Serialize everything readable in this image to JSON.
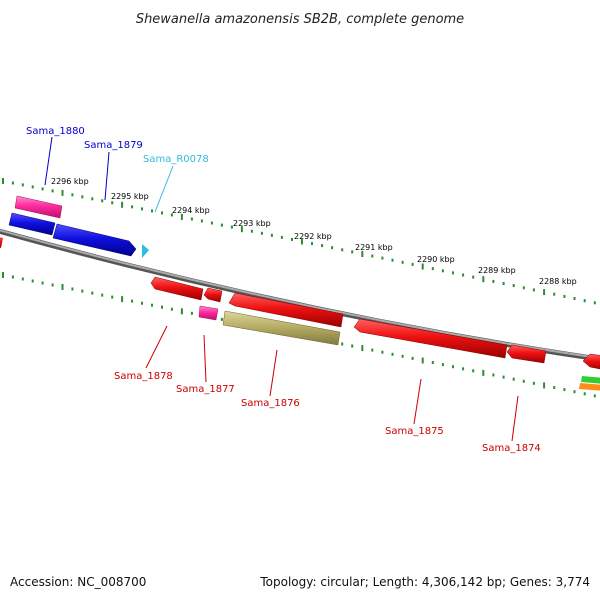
{
  "title": "Shewanella amazonensis SB2B, complete genome",
  "footer": {
    "accession": "Accession: NC_008700",
    "info": "Topology: circular; Length: 4,306,142 bp; Genes: 3,774"
  },
  "colors": {
    "forward_blue": "#1010e0",
    "forward_pink": "#ff2aa0",
    "rrna_cyan": "#33bbdd",
    "reverse_red": "#ee1111",
    "reverse_olive": "#b7ae66",
    "backbone": "#888888",
    "tick_green": "#2e8b2e",
    "label_blue": "#0000cc",
    "label_red": "#cc0000",
    "label_cyan": "#33bbdd"
  },
  "scale_labels": [
    "2296 kbp",
    "2295 kbp",
    "2294 kbp",
    "2293 kbp",
    "2292 kbp",
    "2291 kbp",
    "2290 kbp",
    "2289 kbp",
    "2288 kbp"
  ],
  "forward_genes": [
    {
      "label": "Sama_1880",
      "color": "forward_pink"
    },
    {
      "label": "Sama_1879",
      "color": "forward_blue"
    },
    {
      "label": "Sama_R0078",
      "color": "rrna_cyan"
    }
  ],
  "reverse_genes": [
    {
      "label": "Sama_1878",
      "color": "reverse_red"
    },
    {
      "label": "Sama_1877",
      "color": "forward_pink"
    },
    {
      "label": "Sama_1876",
      "color": "reverse_olive"
    },
    {
      "label": "Sama_1875",
      "color": "reverse_red"
    },
    {
      "label": "Sama_1874",
      "color": "reverse_red"
    }
  ]
}
